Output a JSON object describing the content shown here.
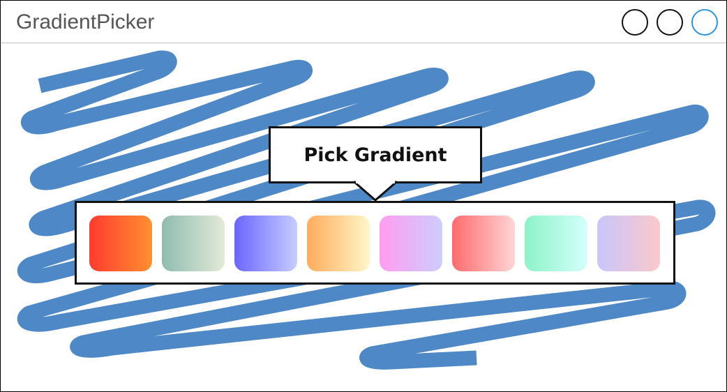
{
  "window": {
    "title": "GradientPicker",
    "controls": [
      "window-button-1",
      "window-button-2",
      "window-button-3"
    ]
  },
  "callout": {
    "label": "Pick Gradient"
  },
  "scribble_color": "#4f88c6",
  "swatches": [
    {
      "from": "#ff3b30",
      "to": "#ff9030"
    },
    {
      "from": "#8fbcaf",
      "to": "#e4ead8"
    },
    {
      "from": "#6a66ff",
      "to": "#c8ccff"
    },
    {
      "from": "#ffac5c",
      "to": "#fff6c9"
    },
    {
      "from": "#ff9cf0",
      "to": "#cdcdff"
    },
    {
      "from": "#ff6a6e",
      "to": "#ffd5d5"
    },
    {
      "from": "#8cf3c7",
      "to": "#d5fffb"
    },
    {
      "from": "#c9c6fb",
      "to": "#fbc8cc"
    }
  ]
}
